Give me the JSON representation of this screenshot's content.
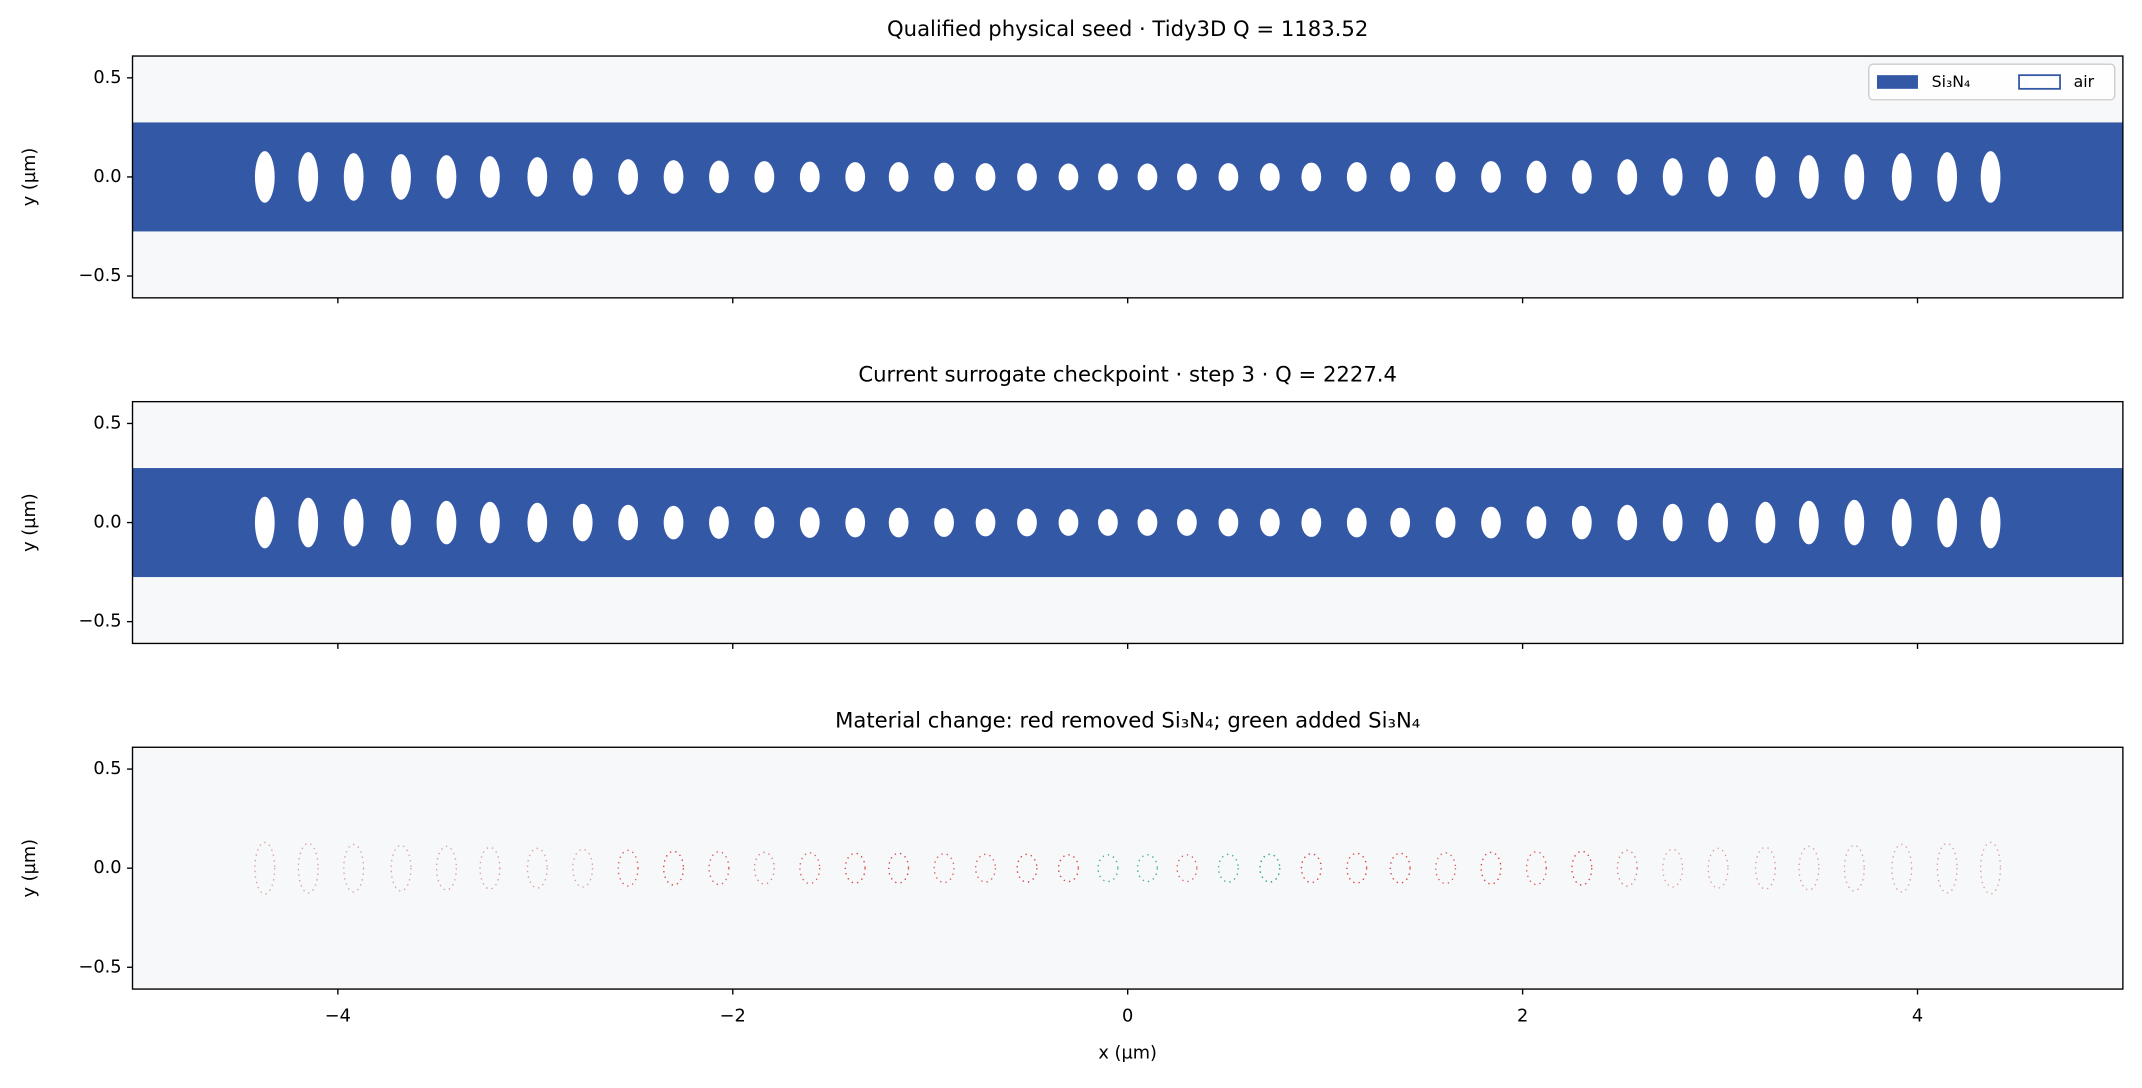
{
  "chart_data": [
    {
      "type": "geometry",
      "title": "Qualified physical seed · Tidy3D Q = 1183.52",
      "ylabel": "y (µm)",
      "xlim": [
        -5.04,
        5.04
      ],
      "ylim": [
        -0.61,
        0.61
      ],
      "xticks": [
        {
          "value": -4,
          "label": "−4"
        },
        {
          "value": -2,
          "label": "−2"
        },
        0,
        2,
        4
      ],
      "yticks": [
        {
          "value": -0.5,
          "label": "−0.5"
        },
        {
          "value": 0,
          "label": "0.0"
        },
        0.5
      ],
      "waveguide_width": 0.55,
      "color": "#3358a5",
      "legend": [
        {
          "name": "Si₃N₄",
          "color": "#3358a5"
        },
        {
          "name": "air",
          "color": "#ffffff"
        }
      ],
      "legend_loc": "upper right",
      "holes": {
        "width": 0.1,
        "x": [
          -4.37,
          -4.15,
          -3.92,
          -3.68,
          -3.45,
          -3.23,
          -2.99,
          -2.76,
          -2.53,
          -2.3,
          -2.07,
          -1.84,
          -1.61,
          -1.38,
          -1.16,
          -0.93,
          -0.72,
          -0.51,
          -0.3,
          -0.1,
          0.1,
          0.3,
          0.51,
          0.72,
          0.93,
          1.16,
          1.38,
          1.61,
          1.84,
          2.07,
          2.3,
          2.53,
          2.76,
          2.99,
          3.23,
          3.45,
          3.68,
          3.92,
          4.15,
          4.37
        ],
        "heights": [
          0.26,
          0.25,
          0.24,
          0.23,
          0.22,
          0.21,
          0.2,
          0.19,
          0.18,
          0.17,
          0.165,
          0.16,
          0.155,
          0.15,
          0.15,
          0.145,
          0.14,
          0.14,
          0.135,
          0.135,
          0.135,
          0.135,
          0.14,
          0.14,
          0.145,
          0.15,
          0.15,
          0.155,
          0.16,
          0.165,
          0.17,
          0.18,
          0.19,
          0.2,
          0.21,
          0.22,
          0.23,
          0.24,
          0.25,
          0.26
        ]
      }
    },
    {
      "type": "geometry",
      "title": "Current surrogate checkpoint · step 3 · Q = 2227.4",
      "ylabel": "y (µm)",
      "xlim": [
        -5.04,
        5.04
      ],
      "ylim": [
        -0.61,
        0.61
      ],
      "xticks": [
        {
          "value": -4,
          "label": "−4"
        },
        {
          "value": -2,
          "label": "−2"
        },
        0,
        2,
        4
      ],
      "yticks": [
        {
          "value": -0.5,
          "label": "−0.5"
        },
        {
          "value": 0,
          "label": "0.0"
        },
        0.5
      ],
      "waveguide_width": 0.55,
      "color": "#3358a5",
      "holes": {
        "width": 0.1,
        "x": [
          -4.37,
          -4.15,
          -3.92,
          -3.68,
          -3.45,
          -3.23,
          -2.99,
          -2.76,
          -2.53,
          -2.3,
          -2.07,
          -1.84,
          -1.61,
          -1.38,
          -1.16,
          -0.93,
          -0.72,
          -0.51,
          -0.3,
          -0.1,
          0.1,
          0.3,
          0.51,
          0.72,
          0.93,
          1.16,
          1.38,
          1.61,
          1.84,
          2.07,
          2.3,
          2.53,
          2.76,
          2.99,
          3.23,
          3.45,
          3.68,
          3.92,
          4.15,
          4.37
        ],
        "heights": [
          0.26,
          0.25,
          0.24,
          0.23,
          0.22,
          0.21,
          0.2,
          0.19,
          0.18,
          0.17,
          0.165,
          0.16,
          0.155,
          0.15,
          0.15,
          0.145,
          0.14,
          0.14,
          0.135,
          0.135,
          0.135,
          0.135,
          0.14,
          0.14,
          0.145,
          0.15,
          0.15,
          0.155,
          0.16,
          0.165,
          0.17,
          0.18,
          0.19,
          0.2,
          0.21,
          0.22,
          0.23,
          0.24,
          0.25,
          0.26
        ]
      }
    },
    {
      "type": "difference",
      "title": "Material change: red removed Si₃N₄; green added Si₃N₄",
      "ylabel": "y (µm)",
      "xlabel": "x (µm)",
      "xlim": [
        -5.04,
        5.04
      ],
      "ylim": [
        -0.61,
        0.61
      ],
      "xticks": [
        {
          "value": -4,
          "label": "−4"
        },
        {
          "value": -2,
          "label": "−2"
        },
        0,
        2,
        4
      ],
      "yticks": [
        {
          "value": -0.5,
          "label": "−0.5"
        },
        {
          "value": 0,
          "label": "0.0"
        },
        0.5
      ],
      "holes": {
        "width": 0.1,
        "x": [
          -4.37,
          -4.15,
          -3.92,
          -3.68,
          -3.45,
          -3.23,
          -2.99,
          -2.76,
          -2.53,
          -2.3,
          -2.07,
          -1.84,
          -1.61,
          -1.38,
          -1.16,
          -0.93,
          -0.72,
          -0.51,
          -0.3,
          -0.1,
          0.1,
          0.3,
          0.51,
          0.72,
          0.93,
          1.16,
          1.38,
          1.61,
          1.84,
          2.07,
          2.3,
          2.53,
          2.76,
          2.99,
          3.23,
          3.45,
          3.68,
          3.92,
          4.15,
          4.37
        ],
        "heights": [
          0.26,
          0.25,
          0.24,
          0.23,
          0.22,
          0.21,
          0.2,
          0.19,
          0.18,
          0.17,
          0.165,
          0.16,
          0.155,
          0.15,
          0.15,
          0.145,
          0.14,
          0.14,
          0.135,
          0.135,
          0.135,
          0.135,
          0.14,
          0.14,
          0.145,
          0.15,
          0.15,
          0.155,
          0.16,
          0.165,
          0.17,
          0.18,
          0.19,
          0.2,
          0.21,
          0.22,
          0.23,
          0.24,
          0.25,
          0.26
        ],
        "colors": [
          "#d9a0a0",
          "#d9a0a0",
          "#d9a0a0",
          "#d9a0a0",
          "#d9a0a0",
          "#d9a0a0",
          "#d9a0a0",
          "#d9a0a0",
          "#d96060",
          "#d94040",
          "#d96060",
          "#d98080",
          "#d96060",
          "#d94040",
          "#d94040",
          "#d96060",
          "#d96060",
          "#d94040",
          "#d94040",
          "#40b080",
          "#40b080",
          "#d96060",
          "#40b080",
          "#20a070",
          "#d94040",
          "#d94040",
          "#d94040",
          "#d96060",
          "#d94040",
          "#d96060",
          "#d94040",
          "#d98080",
          "#d9a0a0",
          "#d9a0a0",
          "#d9a0a0",
          "#d9a0a0",
          "#d9a0a0",
          "#d9a0a0",
          "#d9a0a0",
          "#d9a0a0"
        ]
      }
    }
  ]
}
